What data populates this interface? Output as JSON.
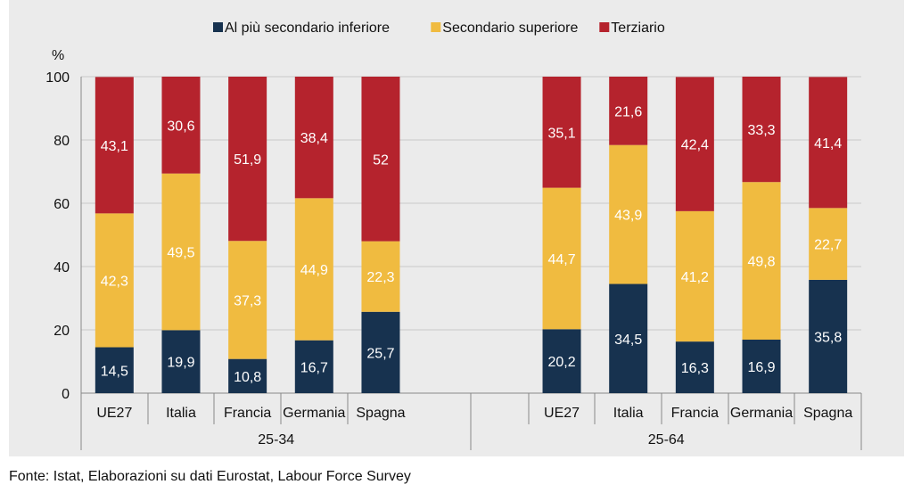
{
  "chart_data": {
    "type": "bar",
    "stacked": true,
    "unit_label": "%",
    "ylim": [
      0,
      100
    ],
    "yticks": [
      0,
      20,
      40,
      60,
      80,
      100
    ],
    "grid": true,
    "legend_position": "top",
    "groups": [
      {
        "label": "25-34",
        "categories": [
          "UE27",
          "Italia",
          "Francia",
          "Germania",
          "Spagna"
        ]
      },
      {
        "label": "25-64",
        "categories": [
          "UE27",
          "Italia",
          "Francia",
          "Germania",
          "Spagna"
        ]
      }
    ],
    "series": [
      {
        "name": "Al più secondario inferiore",
        "color": "#17324f",
        "values": [
          14.5,
          19.9,
          10.8,
          16.7,
          25.7,
          20.2,
          34.5,
          16.3,
          16.9,
          35.8
        ],
        "labels": [
          "14,5",
          "19,9",
          "10,8",
          "16,7",
          "25,7",
          "20,2",
          "34,5",
          "16,3",
          "16,9",
          "35,8"
        ]
      },
      {
        "name": "Secondario superiore",
        "color": "#f0bb40",
        "values": [
          42.3,
          49.5,
          37.3,
          44.9,
          22.3,
          44.7,
          43.9,
          41.2,
          49.8,
          22.7
        ],
        "labels": [
          "42,3",
          "49,5",
          "37,3",
          "44,9",
          "22,3",
          "44,7",
          "43,9",
          "41,2",
          "49,8",
          "22,7"
        ]
      },
      {
        "name": "Terziario",
        "color": "#b5232d",
        "values": [
          43.1,
          30.6,
          51.9,
          38.4,
          52.0,
          35.1,
          21.6,
          42.4,
          33.3,
          41.4
        ],
        "labels": [
          "43,1",
          "30,6",
          "51,9",
          "38,4",
          "52",
          "35,1",
          "21,6",
          "42,4",
          "33,3",
          "41,4"
        ]
      }
    ]
  },
  "source": "Fonte: Istat, Elaborazioni su dati Eurostat, Labour Force Survey"
}
